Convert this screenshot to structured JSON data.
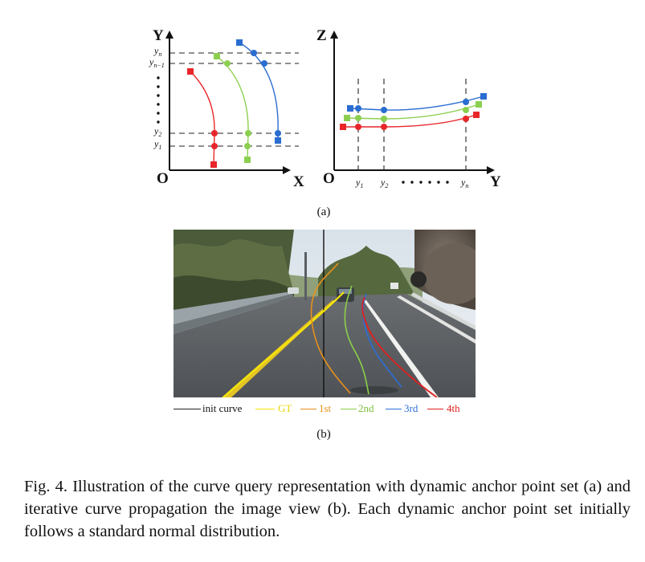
{
  "figure": {
    "panel_a": {
      "xy_plot": {
        "y_axis": "Y",
        "x_axis": "X",
        "origin": "O",
        "ticks": {
          "yn": "y",
          "yn_sub": "n",
          "yn1": "y",
          "yn1_sub": "n−1",
          "y2": "y",
          "y2_sub": "2",
          "y1": "y",
          "y1_sub": "1"
        }
      },
      "zy_plot": {
        "z_axis": "Z",
        "y_axis": "Y",
        "origin": "O",
        "ticks": {
          "y1": "y",
          "y1_sub": "1",
          "y2": "y",
          "y2_sub": "2",
          "yn": "y",
          "yn_sub": "n"
        }
      },
      "label": "(a)"
    },
    "panel_b": {
      "label": "(b)",
      "legend": [
        {
          "text": "init curve",
          "color": "#222222"
        },
        {
          "text": "GT",
          "color": "#f5e60a"
        },
        {
          "text": "1st",
          "color": "#e8901a"
        },
        {
          "text": "2nd",
          "color": "#8cd04a"
        },
        {
          "text": "3rd",
          "color": "#2b6ed8"
        },
        {
          "text": "4th",
          "color": "#e02020"
        }
      ]
    },
    "colors": {
      "red": "#e8262a",
      "green": "#8ccf50",
      "blue": "#2a6dd0"
    }
  },
  "caption": "Fig. 4.  Illustration of the curve query representation with dynamic anchor point set (a) and iterative curve propagation the image view (b). Each dynamic anchor point set initially follows a standard normal distribution."
}
